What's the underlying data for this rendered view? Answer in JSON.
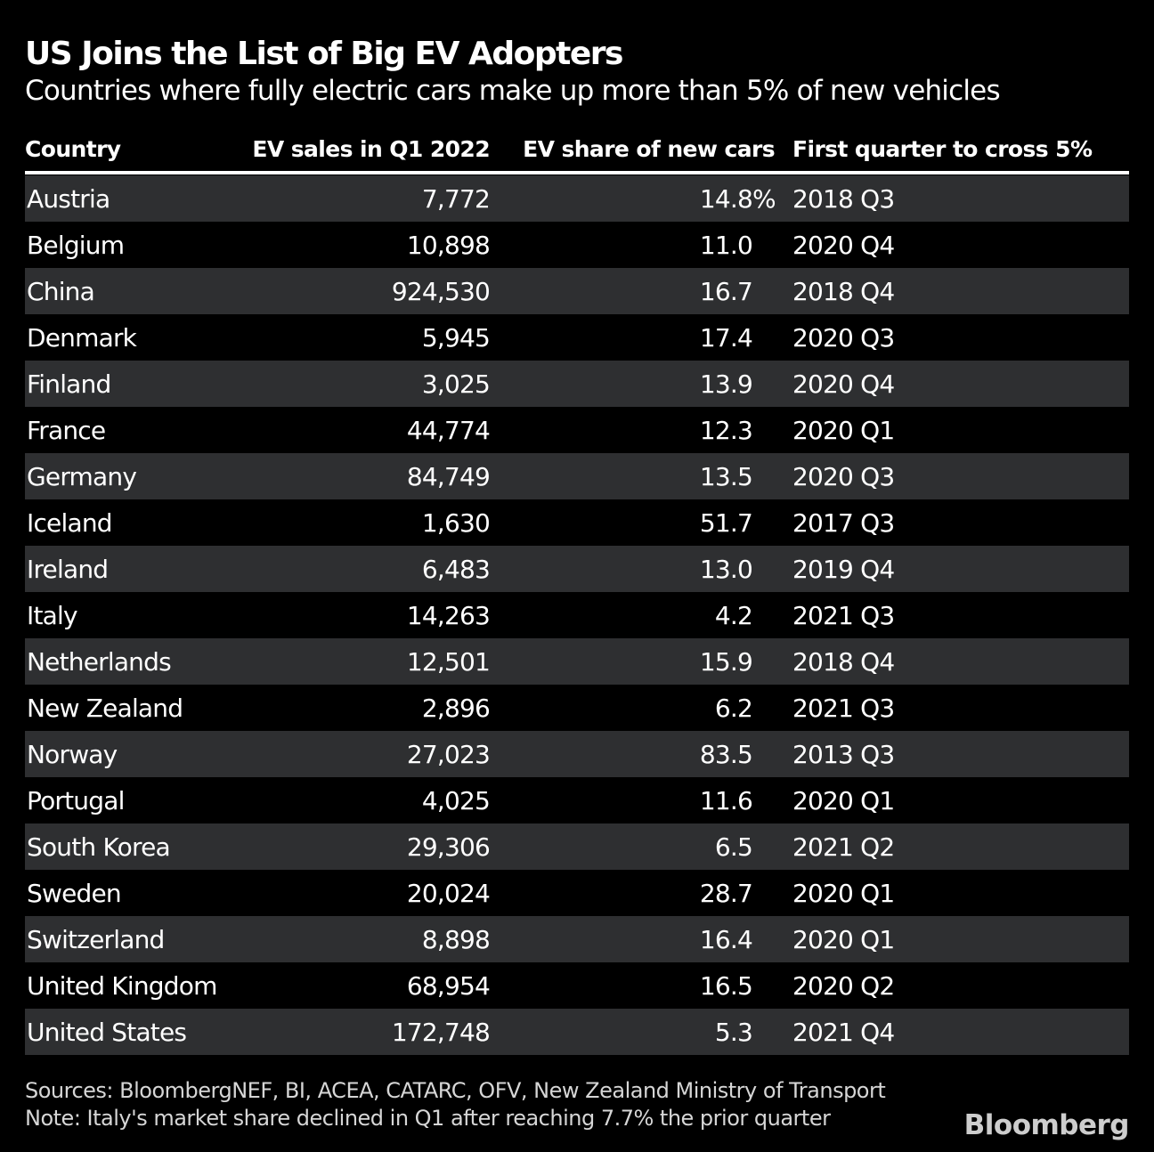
{
  "header": {
    "title": "US Joins the List of Big EV Adopters",
    "subtitle": "Countries where fully electric cars make up more than 5% of new vehicles"
  },
  "table": {
    "columns": [
      "Country",
      "EV sales in Q1 2022",
      "EV share of new cars",
      "First quarter to cross 5%"
    ],
    "rows": [
      {
        "country": "Austria",
        "sales": "7,772",
        "share": "14.8",
        "share_unit": "%",
        "quarter": "2018 Q3"
      },
      {
        "country": "Belgium",
        "sales": "10,898",
        "share": "11.0",
        "quarter": "2020 Q4"
      },
      {
        "country": "China",
        "sales": "924,530",
        "share": "16.7",
        "quarter": "2018 Q4"
      },
      {
        "country": "Denmark",
        "sales": "5,945",
        "share": "17.4",
        "quarter": "2020 Q3"
      },
      {
        "country": "Finland",
        "sales": "3,025",
        "share": "13.9",
        "quarter": "2020 Q4"
      },
      {
        "country": "France",
        "sales": "44,774",
        "share": "12.3",
        "quarter": "2020 Q1"
      },
      {
        "country": "Germany",
        "sales": "84,749",
        "share": "13.5",
        "quarter": "2020 Q3"
      },
      {
        "country": "Iceland",
        "sales": "1,630",
        "share": "51.7",
        "quarter": "2017 Q3"
      },
      {
        "country": "Ireland",
        "sales": "6,483",
        "share": "13.0",
        "quarter": "2019 Q4"
      },
      {
        "country": "Italy",
        "sales": "14,263",
        "share": "4.2",
        "quarter": "2021 Q3"
      },
      {
        "country": "Netherlands",
        "sales": "12,501",
        "share": "15.9",
        "quarter": "2018 Q4"
      },
      {
        "country": "New Zealand",
        "sales": "2,896",
        "share": "6.2",
        "quarter": "2021 Q3"
      },
      {
        "country": "Norway",
        "sales": "27,023",
        "share": "83.5",
        "quarter": "2013 Q3"
      },
      {
        "country": "Portugal",
        "sales": "4,025",
        "share": "11.6",
        "quarter": "2020 Q1"
      },
      {
        "country": "South Korea",
        "sales": "29,306",
        "share": "6.5",
        "quarter": "2021 Q2"
      },
      {
        "country": "Sweden",
        "sales": "20,024",
        "share": "28.7",
        "quarter": "2020 Q1"
      },
      {
        "country": "Switzerland",
        "sales": "8,898",
        "share": "16.4",
        "quarter": "2020 Q1"
      },
      {
        "country": "United Kingdom",
        "sales": "68,954",
        "share": "16.5",
        "quarter": "2020 Q2"
      },
      {
        "country": "United States",
        "sales": "172,748",
        "share": "5.3",
        "quarter": "2021 Q4"
      }
    ]
  },
  "footer": {
    "sources": "Sources: BloombergNEF, BI, ACEA, CATARC, OFV, New Zealand Ministry of Transport",
    "note": "Note: Italy's market share declined in Q1 after reaching 7.7% the prior quarter",
    "logo": "Bloomberg"
  },
  "colors": {
    "background": "#000000",
    "stripe": "#2e2f31",
    "text": "#ffffff",
    "muted": "#d6d6d6",
    "rule": "#ffffff",
    "logo": "#cdcdcd"
  },
  "chart_data": {
    "type": "table",
    "title": "US Joins the List of Big EV Adopters",
    "subtitle": "Countries where fully electric cars make up more than 5% of new vehicles",
    "columns": [
      "Country",
      "EV sales in Q1 2022",
      "EV share of new cars (%)",
      "First quarter to cross 5%"
    ],
    "rows": [
      [
        "Austria",
        7772,
        14.8,
        "2018 Q3"
      ],
      [
        "Belgium",
        10898,
        11.0,
        "2020 Q4"
      ],
      [
        "China",
        924530,
        16.7,
        "2018 Q4"
      ],
      [
        "Denmark",
        5945,
        17.4,
        "2020 Q3"
      ],
      [
        "Finland",
        3025,
        13.9,
        "2020 Q4"
      ],
      [
        "France",
        44774,
        12.3,
        "2020 Q1"
      ],
      [
        "Germany",
        84749,
        13.5,
        "2020 Q3"
      ],
      [
        "Iceland",
        1630,
        51.7,
        "2017 Q3"
      ],
      [
        "Ireland",
        6483,
        13.0,
        "2019 Q4"
      ],
      [
        "Italy",
        14263,
        4.2,
        "2021 Q3"
      ],
      [
        "Netherlands",
        12501,
        15.9,
        "2018 Q4"
      ],
      [
        "New Zealand",
        2896,
        6.2,
        "2021 Q3"
      ],
      [
        "Norway",
        27023,
        83.5,
        "2013 Q3"
      ],
      [
        "Portugal",
        4025,
        11.6,
        "2020 Q1"
      ],
      [
        "South Korea",
        29306,
        6.5,
        "2021 Q2"
      ],
      [
        "Sweden",
        20024,
        28.7,
        "2020 Q1"
      ],
      [
        "Switzerland",
        8898,
        16.4,
        "2020 Q1"
      ],
      [
        "United Kingdom",
        68954,
        16.5,
        "2020 Q2"
      ],
      [
        "United States",
        172748,
        5.3,
        "2021 Q4"
      ]
    ],
    "layout": {
      "striped_rows": "odd rows (1st, 3rd, ...) dark gray #2e2f31 on black",
      "header_rule": "4px white line under column headers",
      "unit_note": "% unit shown only on first data row, overhanging the right-aligned number column"
    }
  }
}
